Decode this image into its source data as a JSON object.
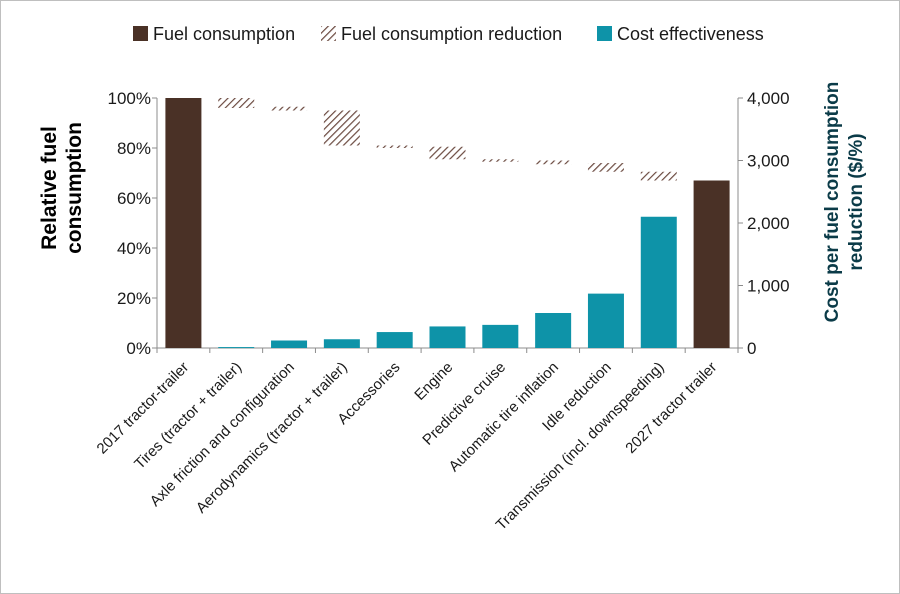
{
  "chart_data": {
    "type": "bar",
    "title": "",
    "categories": [
      "2017 tractor-trailer",
      "Tires (tractor + trailer)",
      "Axle friction and configuration",
      "Aerodynamics (tractor + trailer)",
      "Accessories",
      "Engine",
      "Predictive cruise",
      "Automatic tire inflation",
      "Idle reduction",
      "Transmission (incl. downspeeding)",
      "2027 tractor trailer"
    ],
    "series": [
      {
        "name": "Fuel consumption",
        "kind": "total",
        "axis": "left",
        "color": "#4a3126",
        "values": [
          100,
          null,
          null,
          null,
          null,
          null,
          null,
          null,
          null,
          null,
          67
        ]
      },
      {
        "name": "Fuel consumption reduction",
        "kind": "waterfall-step",
        "axis": "left",
        "color": "#7a5a50",
        "ranges": [
          null,
          [
            96,
            100
          ],
          [
            95,
            96.5
          ],
          [
            81,
            95
          ],
          [
            80,
            81
          ],
          [
            75.5,
            80.5
          ],
          [
            74.5,
            75.5
          ],
          [
            73.5,
            75
          ],
          [
            70.5,
            74
          ],
          [
            67,
            70.5
          ],
          null
        ]
      },
      {
        "name": "Cost effectiveness",
        "kind": "bar",
        "axis": "right",
        "color": "#0e93a8",
        "values": [
          null,
          15,
          120,
          140,
          255,
          345,
          370,
          560,
          870,
          2100,
          null
        ]
      }
    ],
    "ylabel": "Relative fuel consumption",
    "ylim": [
      0,
      100
    ],
    "yticks": [
      "0%",
      "20%",
      "40%",
      "60%",
      "80%",
      "100%"
    ],
    "ylabel_right": "Cost per fuel consumption reduction ($/%)",
    "ylim_right": [
      0,
      4000
    ],
    "yticks_right": [
      "0",
      "1,000",
      "2,000",
      "3,000",
      "4,000"
    ],
    "legend_position": "top"
  },
  "legend": {
    "fuel_label": "Fuel consumption",
    "reduction_label": "Fuel consumption reduction",
    "cost_label": "Cost effectiveness"
  },
  "axes": {
    "left_title_line1": "Relative fuel",
    "left_title_line2": "consumption",
    "right_title_line1": "Cost per fuel consumption",
    "right_title_line2": "reduction ($/%)"
  }
}
